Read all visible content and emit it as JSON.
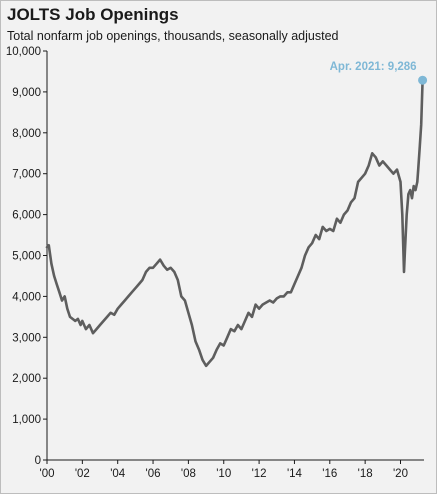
{
  "title": "JOLTS Job Openings",
  "subtitle": "Total nonfarm job openings, thousands, seasonally adjusted",
  "colors": {
    "line": "#5e5e5e",
    "highlight": "#7fb8d6",
    "axis": "#1a1a1a",
    "background": "#f2f2f2"
  },
  "chart_data": {
    "type": "line",
    "title": "JOLTS Job Openings",
    "subtitle": "Total nonfarm job openings, thousands, seasonally adjusted",
    "xlabel": "",
    "ylabel": "",
    "ylim": [
      0,
      10000
    ],
    "xlim": [
      2000.0,
      2021.33
    ],
    "grid": false,
    "y_ticks": [
      {
        "value": 0,
        "label": "0"
      },
      {
        "value": 1000,
        "label": "1,000"
      },
      {
        "value": 2000,
        "label": "2,000"
      },
      {
        "value": 3000,
        "label": "3,000"
      },
      {
        "value": 4000,
        "label": "4,000"
      },
      {
        "value": 5000,
        "label": "5,000"
      },
      {
        "value": 6000,
        "label": "6,000"
      },
      {
        "value": 7000,
        "label": "7,000"
      },
      {
        "value": 8000,
        "label": "8,000"
      },
      {
        "value": 9000,
        "label": "9,000"
      },
      {
        "value": 10000,
        "label": "10,000"
      }
    ],
    "x_ticks": [
      {
        "value": 2000,
        "label": "'00"
      },
      {
        "value": 2002,
        "label": "'02"
      },
      {
        "value": 2004,
        "label": "'04"
      },
      {
        "value": 2006,
        "label": "'06"
      },
      {
        "value": 2008,
        "label": "'08"
      },
      {
        "value": 2010,
        "label": "'10"
      },
      {
        "value": 2012,
        "label": "'12"
      },
      {
        "value": 2014,
        "label": "'14"
      },
      {
        "value": 2016,
        "label": "'16"
      },
      {
        "value": 2018,
        "label": "'18"
      },
      {
        "value": 2020,
        "label": "'20"
      }
    ],
    "annotation": {
      "x": 2021.25,
      "y": 9286,
      "label": "Apr. 2021: 9,286"
    },
    "series": [
      {
        "x": [
          2000.0,
          2000.1,
          2000.25,
          2000.4,
          2000.55,
          2000.7,
          2000.85,
          2001.0,
          2001.15,
          2001.3,
          2001.45,
          2001.6,
          2001.75,
          2001.9,
          2002.0,
          2002.2,
          2002.4,
          2002.6,
          2002.8,
          2003.0,
          2003.2,
          2003.4,
          2003.6,
          2003.8,
          2004.0,
          2004.2,
          2004.4,
          2004.6,
          2004.8,
          2005.0,
          2005.2,
          2005.4,
          2005.6,
          2005.8,
          2006.0,
          2006.2,
          2006.4,
          2006.6,
          2006.8,
          2007.0,
          2007.2,
          2007.4,
          2007.6,
          2007.8,
          2008.0,
          2008.2,
          2008.4,
          2008.6,
          2008.8,
          2009.0,
          2009.2,
          2009.4,
          2009.6,
          2009.8,
          2010.0,
          2010.2,
          2010.4,
          2010.6,
          2010.8,
          2011.0,
          2011.2,
          2011.4,
          2011.6,
          2011.8,
          2012.0,
          2012.2,
          2012.4,
          2012.6,
          2012.8,
          2013.0,
          2013.2,
          2013.4,
          2013.6,
          2013.8,
          2014.0,
          2014.2,
          2014.4,
          2014.6,
          2014.8,
          2015.0,
          2015.2,
          2015.4,
          2015.6,
          2015.8,
          2016.0,
          2016.2,
          2016.4,
          2016.6,
          2016.8,
          2017.0,
          2017.2,
          2017.4,
          2017.6,
          2017.8,
          2018.0,
          2018.2,
          2018.4,
          2018.6,
          2018.8,
          2019.0,
          2019.2,
          2019.4,
          2019.6,
          2019.8,
          2020.0,
          2020.1,
          2020.2,
          2020.25,
          2020.35,
          2020.45,
          2020.55,
          2020.65,
          2020.75,
          2020.85,
          2020.95,
          2021.0,
          2021.08,
          2021.17,
          2021.25
        ],
        "y": [
          5200,
          5250,
          4800,
          4500,
          4300,
          4100,
          3900,
          4000,
          3700,
          3500,
          3450,
          3400,
          3450,
          3300,
          3400,
          3200,
          3300,
          3100,
          3200,
          3300,
          3400,
          3500,
          3600,
          3550,
          3700,
          3800,
          3900,
          4000,
          4100,
          4200,
          4300,
          4400,
          4600,
          4700,
          4700,
          4800,
          4900,
          4750,
          4650,
          4700,
          4600,
          4400,
          4000,
          3900,
          3600,
          3300,
          2900,
          2700,
          2450,
          2300,
          2400,
          2500,
          2700,
          2850,
          2800,
          3000,
          3200,
          3150,
          3300,
          3200,
          3400,
          3600,
          3500,
          3800,
          3700,
          3800,
          3850,
          3900,
          3850,
          3950,
          4000,
          4000,
          4100,
          4100,
          4300,
          4500,
          4700,
          5000,
          5200,
          5300,
          5500,
          5400,
          5700,
          5600,
          5650,
          5600,
          5900,
          5800,
          6000,
          6100,
          6300,
          6400,
          6800,
          6900,
          7000,
          7200,
          7500,
          7400,
          7200,
          7300,
          7200,
          7100,
          7000,
          7100,
          6800,
          6000,
          4600,
          5100,
          6000,
          6500,
          6600,
          6400,
          6700,
          6600,
          6800,
          7100,
          7600,
          8200,
          9286
        ]
      }
    ]
  }
}
